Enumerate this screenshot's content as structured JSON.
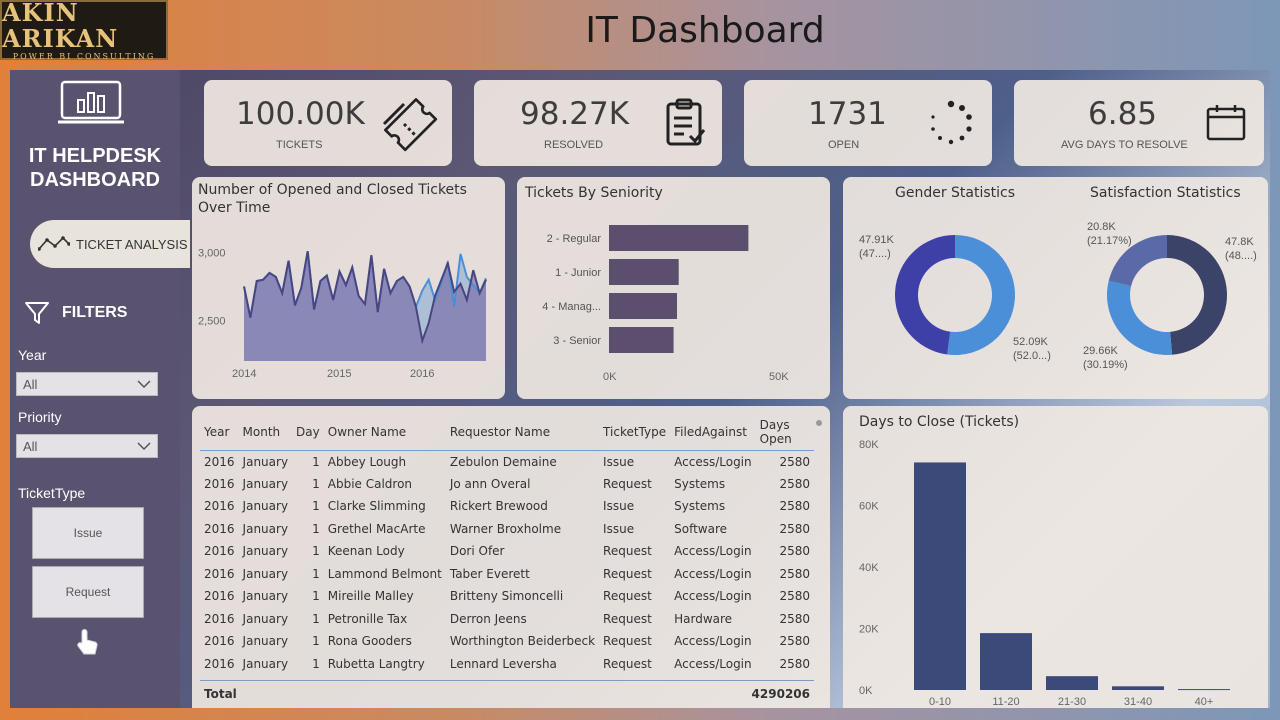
{
  "logo": {
    "name": "AKIN ARIKAN",
    "tagline": "POWER BI CONSULTING"
  },
  "page_title": "IT Dashboard",
  "sidebar": {
    "title_line1": "IT HELPDESK",
    "title_line2": "DASHBOARD",
    "active_tab": "TICKET ANALYSIS",
    "filters_heading": "FILTERS",
    "year": {
      "label": "Year",
      "value": "All"
    },
    "priority": {
      "label": "Priority",
      "value": "All"
    },
    "ticket_type": {
      "label": "TicketType",
      "options": [
        "Issue",
        "Request"
      ]
    }
  },
  "kpis": [
    {
      "value": "100.00K",
      "label": "TICKETS",
      "icon": "ticket-icon"
    },
    {
      "value": "98.27K",
      "label": "RESOLVED",
      "icon": "clipboard-check-icon"
    },
    {
      "value": "1731",
      "label": "OPEN",
      "icon": "loading-spinner-icon"
    },
    {
      "value": "6.85",
      "label": "AVG DAYS TO RESOLVE",
      "icon": "calendar-icon"
    }
  ],
  "colors": {
    "dark_series": "#4a4580",
    "light_series": "#4a8fd8",
    "bar_purple": "#5b4f6d",
    "bar_navy": "#3b4a78",
    "donut_blue": "#4a8fd8",
    "donut_indigo": "#3e40a8",
    "donut_navy": "#3b4468",
    "donut_slate": "#5a6aa8"
  },
  "chart_data": [
    {
      "type": "area",
      "title_line1": "Number of Opened and Closed Tickets",
      "title_line2": "Over Time",
      "x_ticks": [
        "2014",
        "2015",
        "2016"
      ],
      "y_ticks": [
        "3,000",
        "2,500"
      ],
      "ylim": [
        2200,
        3100
      ],
      "series": [
        {
          "values": [
            2750,
            2520,
            2790,
            2800,
            2850,
            2820,
            2700,
            2940,
            2610,
            2740,
            3010,
            2580,
            2790,
            2830,
            2650,
            2860,
            2760,
            2890,
            2680,
            2620,
            2980,
            2560,
            2880,
            2700,
            2790,
            2820,
            2750,
            2600,
            2350,
            2480,
            2680,
            2800,
            2920,
            2710,
            2770,
            2650,
            2870,
            2700,
            2800
          ]
        },
        {
          "values": [
            2750,
            2520,
            2790,
            2800,
            2850,
            2820,
            2700,
            2940,
            2610,
            2740,
            3010,
            2580,
            2790,
            2830,
            2650,
            2860,
            2760,
            2890,
            2680,
            2620,
            2980,
            2560,
            2880,
            2700,
            2790,
            2820,
            2750,
            2600,
            2720,
            2800,
            2650,
            2780,
            2930,
            2600,
            2990,
            2820,
            2760,
            2700,
            2810
          ]
        }
      ]
    },
    {
      "type": "bar",
      "orientation": "horizontal",
      "title": "Tickets By Seniority",
      "categories": [
        "2 - Regular",
        "1 - Junior",
        "4 - Manag...",
        "3 - Senior"
      ],
      "values": [
        41000,
        20500,
        20000,
        19000
      ],
      "x_ticks": [
        "0K",
        "50K"
      ],
      "xlim": [
        0,
        50000
      ]
    },
    {
      "type": "pie",
      "title": "Gender Statistics",
      "labels": [
        "47.91K\n(47....)",
        "52.09K\n(52.0...)"
      ],
      "values": [
        47.91,
        52.09
      ]
    },
    {
      "type": "pie",
      "title": "Satisfaction Statistics",
      "labels": [
        "47.8K\n(48....)",
        "29.66K\n(30.19%)",
        "20.8K\n(21.17%)"
      ],
      "values": [
        47.8,
        29.66,
        20.8
      ]
    },
    {
      "type": "bar",
      "title": "Days to Close (Tickets)",
      "categories": [
        "0-10",
        "11-20",
        "21-30",
        "31-40",
        "40+"
      ],
      "values": [
        74000,
        18500,
        4500,
        1200,
        300
      ],
      "y_ticks": [
        "80K",
        "60K",
        "40K",
        "20K",
        "0K"
      ],
      "ylim": [
        0,
        80000
      ]
    }
  ],
  "table": {
    "headers": [
      "Year",
      "Month",
      "Day",
      "Owner Name",
      "Requestor Name",
      "TicketType",
      "FiledAgainst",
      "Days Open"
    ],
    "rows": [
      [
        "2016",
        "January",
        "1",
        "Abbey Lough",
        "Zebulon Demaine",
        "Issue",
        "Access/Login",
        "2580"
      ],
      [
        "2016",
        "January",
        "1",
        "Abbie Caldron",
        "Jo ann Overal",
        "Request",
        "Systems",
        "2580"
      ],
      [
        "2016",
        "January",
        "1",
        "Clarke Slimming",
        "Rickert Brewood",
        "Issue",
        "Systems",
        "2580"
      ],
      [
        "2016",
        "January",
        "1",
        "Grethel MacArte",
        "Warner Broxholme",
        "Issue",
        "Software",
        "2580"
      ],
      [
        "2016",
        "January",
        "1",
        "Keenan Lody",
        "Dori Ofer",
        "Request",
        "Access/Login",
        "2580"
      ],
      [
        "2016",
        "January",
        "1",
        "Lammond Belmont",
        "Taber Everett",
        "Request",
        "Access/Login",
        "2580"
      ],
      [
        "2016",
        "January",
        "1",
        "Mireille Malley",
        "Britteny Simoncelli",
        "Request",
        "Access/Login",
        "2580"
      ],
      [
        "2016",
        "January",
        "1",
        "Petronille Tax",
        "Derron Jeens",
        "Request",
        "Hardware",
        "2580"
      ],
      [
        "2016",
        "January",
        "1",
        "Rona Gooders",
        "Worthington Beiderbeck",
        "Request",
        "Access/Login",
        "2580"
      ],
      [
        "2016",
        "January",
        "1",
        "Rubetta Langtry",
        "Lennard Leversha",
        "Request",
        "Access/Login",
        "2580"
      ]
    ],
    "total_label": "Total",
    "total_value": "4290206"
  }
}
